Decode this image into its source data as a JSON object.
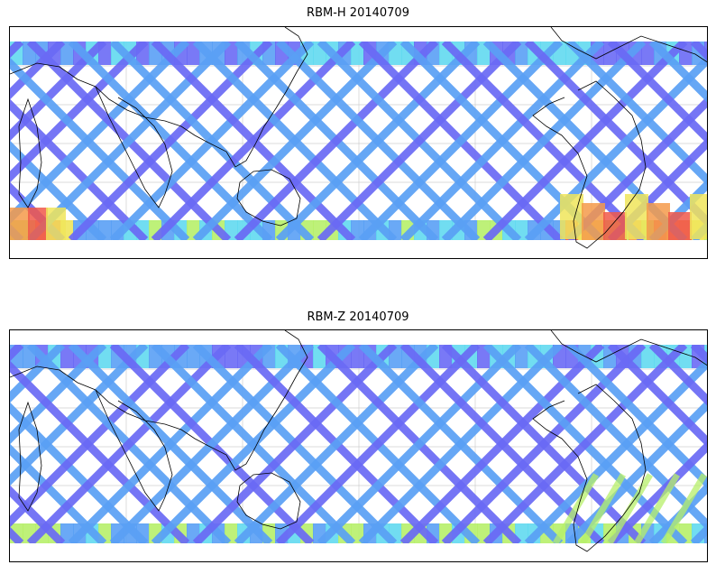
{
  "panels": [
    {
      "title": "RBM-H 20140709",
      "grid_color": "#cfcfcf",
      "track_colors": [
        "#6a6af5",
        "#5aa0f5",
        "#62d9f0",
        "#b7f06a",
        "#f0e55a",
        "#f59a4a",
        "#f0584a"
      ]
    },
    {
      "title": "RBM-Z 20140709",
      "grid_color": "#cfcfcf",
      "track_colors": [
        "#6a6af5",
        "#5aa0f5",
        "#62d9f0",
        "#b7f06a",
        "#f0e55a"
      ]
    }
  ]
}
